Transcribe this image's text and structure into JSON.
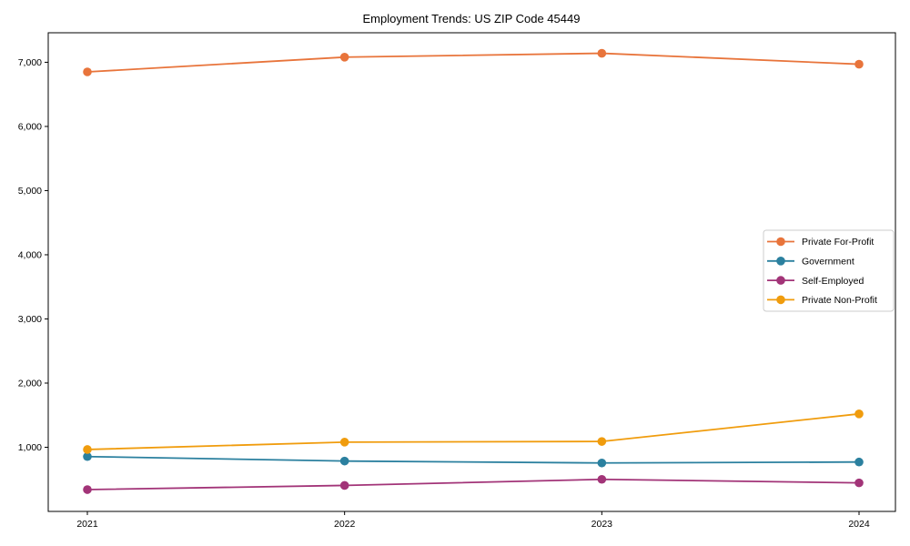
{
  "title": "Employment Trends: US ZIP Code 45449",
  "chart_data": {
    "type": "line",
    "title": "Employment Trends: US ZIP Code 45449",
    "xlabel": "",
    "ylabel": "",
    "categories": [
      "2021",
      "2022",
      "2023",
      "2024"
    ],
    "x": [
      2021,
      2022,
      2023,
      2024
    ],
    "series": [
      {
        "name": "Private For-Profit",
        "color": "#e8743b",
        "values": [
          6850,
          7080,
          7140,
          6970
        ]
      },
      {
        "name": "Government",
        "color": "#2b809f",
        "values": [
          855,
          785,
          755,
          770
        ]
      },
      {
        "name": "Self-Employed",
        "color": "#a23478",
        "values": [
          340,
          405,
          500,
          445
        ]
      },
      {
        "name": "Private Non-Profit",
        "color": "#f09c0d",
        "values": [
          965,
          1080,
          1090,
          1520
        ]
      }
    ],
    "ylim": [
      0,
      7460
    ],
    "ytick_values": [
      1000,
      2000,
      3000,
      4000,
      5000,
      6000,
      7000
    ],
    "ytick_labels": [
      "1,000",
      "2,000",
      "3,000",
      "4,000",
      "5,000",
      "6,000",
      "7,000"
    ],
    "grid": false,
    "marker": "circle",
    "legend_position": "center-right",
    "legend_border_color": "#cccccc",
    "legend_background": "#ffffff",
    "axis_color": "#000000"
  }
}
